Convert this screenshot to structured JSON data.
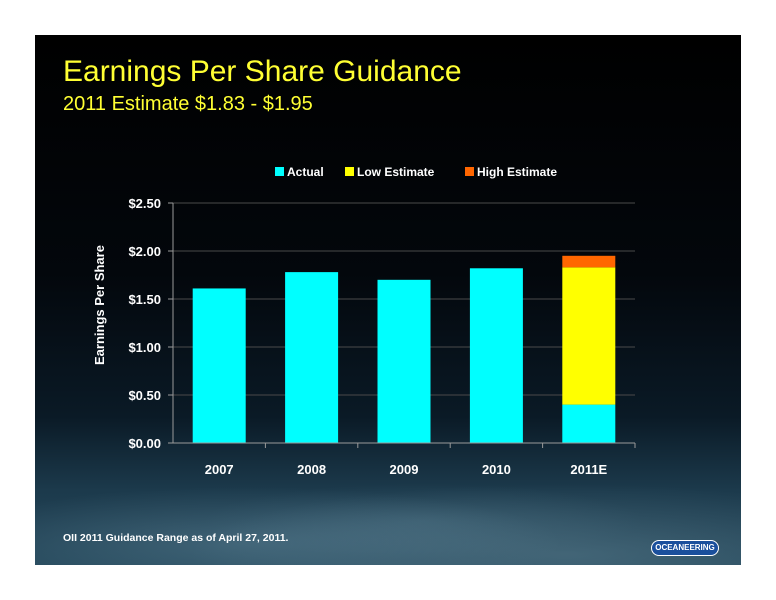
{
  "slide": {
    "title": "Earnings Per Share Guidance",
    "subtitle": "2011 Estimate $1.83 - $1.95",
    "footnote": "OII 2011 Guidance Range as of  April 27, 2011.",
    "logo_text": "OCEANEERING"
  },
  "colors": {
    "title": "#ffff33",
    "actual": "#00ffff",
    "low_estimate": "#ffff00",
    "high_estimate": "#ff6600"
  },
  "chart_data": {
    "type": "bar",
    "stacked": true,
    "categories": [
      "2007",
      "2008",
      "2009",
      "2010",
      "2011E"
    ],
    "series": [
      {
        "name": "Actual",
        "color": "#00ffff",
        "values": [
          1.61,
          1.78,
          1.7,
          1.82,
          0.4
        ]
      },
      {
        "name": "Low Estimate",
        "color": "#ffff00",
        "values": [
          0,
          0,
          0,
          0,
          1.43
        ]
      },
      {
        "name": "High Estimate",
        "color": "#ff6600",
        "values": [
          0,
          0,
          0,
          0,
          0.12
        ]
      }
    ],
    "ylabel": "Earnings Per Share",
    "ylim": [
      0,
      2.5
    ],
    "yticks": [
      0,
      0.5,
      1.0,
      1.5,
      2.0,
      2.5
    ],
    "ytick_labels": [
      "$0.00",
      "$0.50",
      "$1.00",
      "$1.50",
      "$2.00",
      "$2.50"
    ],
    "grid": true,
    "legend_position": "top"
  }
}
